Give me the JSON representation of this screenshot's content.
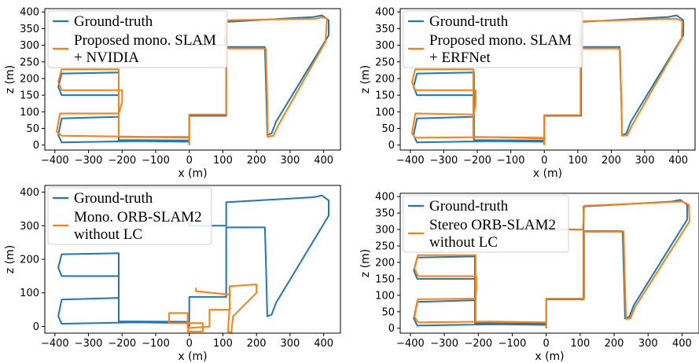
{
  "colors": {
    "ground_truth": "#1f77b4",
    "estimate": "#ff7f0e"
  },
  "chart_data": [
    {
      "type": "line",
      "xlabel": "x (m)",
      "ylabel": "z (m)",
      "xlim": [
        -430,
        450
      ],
      "ylim": [
        -15,
        410
      ],
      "xticks": [
        "−400",
        "−300",
        "−200",
        "−100",
        "0",
        "100",
        "200",
        "300",
        "400"
      ],
      "yticks": [
        "0",
        "50",
        "100",
        "150",
        "200",
        "250",
        "300",
        "350",
        "400"
      ],
      "grid": false,
      "legend_position": "top-left",
      "legend": [
        "Ground-truth",
        "Proposed mono. SLAM",
        "+ NVIDIA"
      ],
      "series": [
        {
          "name": "Ground-truth",
          "points": [
            [
              0,
              0
            ],
            [
              0,
              10
            ],
            [
              -160,
              12
            ],
            [
              -380,
              8
            ],
            [
              -390,
              30
            ],
            [
              -380,
              80
            ],
            [
              -210,
              85
            ],
            [
              -210,
              110
            ],
            [
              -210,
              150
            ],
            [
              -380,
              150
            ],
            [
              -390,
              175
            ],
            [
              -380,
              215
            ],
            [
              -210,
              218
            ],
            [
              -210,
              180
            ],
            [
              -210,
              15
            ],
            [
              0,
              14
            ],
            [
              0,
              88
            ],
            [
              110,
              88
            ],
            [
              110,
              295
            ],
            [
              225,
              295
            ],
            [
              230,
              120
            ],
            [
              232,
              30
            ],
            [
              245,
              35
            ],
            [
              258,
              70
            ],
            [
              415,
              330
            ],
            [
              415,
              375
            ],
            [
              395,
              390
            ],
            [
              370,
              385
            ],
            [
              110,
              370
            ],
            [
              110,
              300
            ],
            [
              0,
              300
            ],
            [
              -5,
              310
            ]
          ]
        },
        {
          "name": "Proposed mono. SLAM + NVIDIA",
          "points": [
            [
              0,
              0
            ],
            [
              0,
              25
            ],
            [
              -130,
              25
            ],
            [
              -380,
              28
            ],
            [
              -395,
              40
            ],
            [
              -385,
              95
            ],
            [
              -210,
              95
            ],
            [
              -200,
              130
            ],
            [
              -200,
              165
            ],
            [
              -380,
              165
            ],
            [
              -390,
              190
            ],
            [
              -380,
              228
            ],
            [
              -210,
              228
            ],
            [
              -210,
              25
            ],
            [
              0,
              22
            ],
            [
              0,
              92
            ],
            [
              110,
              92
            ],
            [
              110,
              290
            ],
            [
              228,
              290
            ],
            [
              232,
              130
            ],
            [
              233,
              25
            ],
            [
              250,
              28
            ],
            [
              265,
              60
            ],
            [
              405,
              310
            ],
            [
              410,
              380
            ],
            [
              395,
              385
            ],
            [
              380,
              380
            ],
            [
              110,
              375
            ],
            [
              105,
              300
            ],
            [
              0,
              305
            ]
          ]
        }
      ]
    },
    {
      "type": "line",
      "xlabel": "x (m)",
      "ylabel": "z (m)",
      "xlim": [
        -430,
        450
      ],
      "ylim": [
        -15,
        410
      ],
      "xticks": [
        "−400",
        "−300",
        "−200",
        "−100",
        "0",
        "100",
        "200",
        "300",
        "400"
      ],
      "yticks": [
        "0",
        "50",
        "100",
        "150",
        "200",
        "250",
        "300",
        "350",
        "400"
      ],
      "grid": false,
      "legend_position": "top-left",
      "legend": [
        "Ground-truth",
        "Proposed mono. SLAM",
        "+ ERFNet"
      ],
      "series": [
        {
          "name": "Ground-truth",
          "points": [
            [
              0,
              0
            ],
            [
              0,
              10
            ],
            [
              -160,
              12
            ],
            [
              -380,
              8
            ],
            [
              -390,
              30
            ],
            [
              -380,
              80
            ],
            [
              -210,
              85
            ],
            [
              -210,
              110
            ],
            [
              -210,
              150
            ],
            [
              -380,
              150
            ],
            [
              -390,
              175
            ],
            [
              -380,
              215
            ],
            [
              -210,
              218
            ],
            [
              -210,
              180
            ],
            [
              -210,
              15
            ],
            [
              0,
              14
            ],
            [
              0,
              88
            ],
            [
              110,
              88
            ],
            [
              110,
              295
            ],
            [
              225,
              295
            ],
            [
              230,
              120
            ],
            [
              232,
              30
            ],
            [
              245,
              35
            ],
            [
              258,
              70
            ],
            [
              415,
              330
            ],
            [
              415,
              375
            ],
            [
              395,
              390
            ],
            [
              370,
              385
            ],
            [
              110,
              370
            ],
            [
              110,
              300
            ],
            [
              0,
              300
            ],
            [
              -5,
              310
            ]
          ]
        },
        {
          "name": "Proposed mono. SLAM + ERFNet",
          "points": [
            [
              0,
              0
            ],
            [
              0,
              22
            ],
            [
              -150,
              24
            ],
            [
              -385,
              22
            ],
            [
              -395,
              35
            ],
            [
              -385,
              95
            ],
            [
              -210,
              92
            ],
            [
              -205,
              130
            ],
            [
              -205,
              165
            ],
            [
              -385,
              165
            ],
            [
              -395,
              190
            ],
            [
              -385,
              228
            ],
            [
              -212,
              228
            ],
            [
              -212,
              25
            ],
            [
              0,
              20
            ],
            [
              0,
              90
            ],
            [
              108,
              90
            ],
            [
              108,
              290
            ],
            [
              226,
              290
            ],
            [
              230,
              130
            ],
            [
              232,
              28
            ],
            [
              248,
              30
            ],
            [
              262,
              60
            ],
            [
              410,
              320
            ],
            [
              412,
              372
            ],
            [
              395,
              380
            ],
            [
              110,
              372
            ],
            [
              106,
              300
            ],
            [
              0,
              303
            ]
          ]
        }
      ]
    },
    {
      "type": "line",
      "xlabel": "x (m)",
      "ylabel": "z (m)",
      "xlim": [
        -430,
        450
      ],
      "ylim": [
        -20,
        420
      ],
      "xticks": [
        "−400",
        "−300",
        "−200",
        "−100",
        "0",
        "100",
        "200",
        "300",
        "400"
      ],
      "yticks": [
        "0",
        "100",
        "200",
        "300",
        "400"
      ],
      "grid": false,
      "legend_position": "top-left",
      "legend": [
        "Ground-truth",
        "Mono. ORB-SLAM2",
        "without LC"
      ],
      "series": [
        {
          "name": "Ground-truth",
          "points": [
            [
              0,
              0
            ],
            [
              0,
              10
            ],
            [
              -160,
              12
            ],
            [
              -380,
              8
            ],
            [
              -390,
              30
            ],
            [
              -380,
              80
            ],
            [
              -210,
              85
            ],
            [
              -210,
              110
            ],
            [
              -210,
              150
            ],
            [
              -380,
              150
            ],
            [
              -390,
              175
            ],
            [
              -380,
              215
            ],
            [
              -210,
              218
            ],
            [
              -210,
              180
            ],
            [
              -210,
              15
            ],
            [
              0,
              14
            ],
            [
              0,
              88
            ],
            [
              110,
              88
            ],
            [
              110,
              295
            ],
            [
              225,
              295
            ],
            [
              230,
              120
            ],
            [
              232,
              30
            ],
            [
              245,
              35
            ],
            [
              258,
              70
            ],
            [
              415,
              330
            ],
            [
              415,
              375
            ],
            [
              395,
              390
            ],
            [
              370,
              385
            ],
            [
              110,
              370
            ],
            [
              110,
              300
            ],
            [
              0,
              300
            ],
            [
              -5,
              310
            ]
          ]
        },
        {
          "name": "Mono. ORB-SLAM2 without LC",
          "points": [
            [
              0,
              0
            ],
            [
              -5,
              -15
            ],
            [
              40,
              -15
            ],
            [
              40,
              10
            ],
            [
              -60,
              10
            ],
            [
              -60,
              40
            ],
            [
              -5,
              40
            ],
            [
              -5,
              -5
            ],
            [
              60,
              0
            ],
            [
              60,
              50
            ],
            [
              120,
              50
            ],
            [
              120,
              120
            ],
            [
              200,
              125
            ],
            [
              200,
              100
            ],
            [
              130,
              30
            ],
            [
              125,
              -20
            ],
            [
              115,
              -15
            ],
            [
              120,
              60
            ],
            [
              120,
              95
            ],
            [
              20,
              105
            ],
            [
              20,
              115
            ]
          ]
        }
      ]
    },
    {
      "type": "line",
      "xlabel": "x (m)",
      "ylabel": "z (m)",
      "xlim": [
        -430,
        450
      ],
      "ylim": [
        -15,
        410
      ],
      "xticks": [
        "−400",
        "−300",
        "−200",
        "−100",
        "0",
        "100",
        "200",
        "300",
        "400"
      ],
      "yticks": [
        "0",
        "50",
        "100",
        "150",
        "200",
        "250",
        "300",
        "350",
        "400"
      ],
      "grid": false,
      "legend_position": "top-left",
      "legend": [
        "Ground-truth",
        "Stereo ORB-SLAM2",
        "without LC"
      ],
      "series": [
        {
          "name": "Ground-truth",
          "points": [
            [
              0,
              0
            ],
            [
              0,
              10
            ],
            [
              -160,
              12
            ],
            [
              -380,
              8
            ],
            [
              -390,
              30
            ],
            [
              -380,
              80
            ],
            [
              -210,
              85
            ],
            [
              -210,
              110
            ],
            [
              -210,
              150
            ],
            [
              -380,
              150
            ],
            [
              -390,
              175
            ],
            [
              -380,
              215
            ],
            [
              -210,
              218
            ],
            [
              -210,
              180
            ],
            [
              -210,
              15
            ],
            [
              0,
              14
            ],
            [
              0,
              88
            ],
            [
              110,
              88
            ],
            [
              110,
              295
            ],
            [
              225,
              295
            ],
            [
              230,
              120
            ],
            [
              232,
              30
            ],
            [
              245,
              35
            ],
            [
              258,
              70
            ],
            [
              415,
              330
            ],
            [
              415,
              375
            ],
            [
              395,
              390
            ],
            [
              370,
              385
            ],
            [
              110,
              370
            ],
            [
              110,
              300
            ],
            [
              0,
              300
            ],
            [
              -5,
              310
            ]
          ]
        },
        {
          "name": "Stereo ORB-SLAM2 without LC",
          "points": [
            [
              0,
              0
            ],
            [
              0,
              18
            ],
            [
              -160,
              20
            ],
            [
              -378,
              18
            ],
            [
              -388,
              35
            ],
            [
              -378,
              88
            ],
            [
              -208,
              90
            ],
            [
              -206,
              120
            ],
            [
              -206,
              158
            ],
            [
              -378,
              158
            ],
            [
              -388,
              182
            ],
            [
              -378,
              222
            ],
            [
              -208,
              222
            ],
            [
              -208,
              20
            ],
            [
              0,
              18
            ],
            [
              0,
              90
            ],
            [
              112,
              90
            ],
            [
              112,
              293
            ],
            [
              228,
              293
            ],
            [
              232,
              125
            ],
            [
              235,
              28
            ],
            [
              248,
              30
            ],
            [
              262,
              65
            ],
            [
              422,
              325
            ],
            [
              420,
              375
            ],
            [
              400,
              385
            ],
            [
              112,
              372
            ],
            [
              108,
              300
            ],
            [
              0,
              302
            ]
          ]
        }
      ]
    }
  ]
}
